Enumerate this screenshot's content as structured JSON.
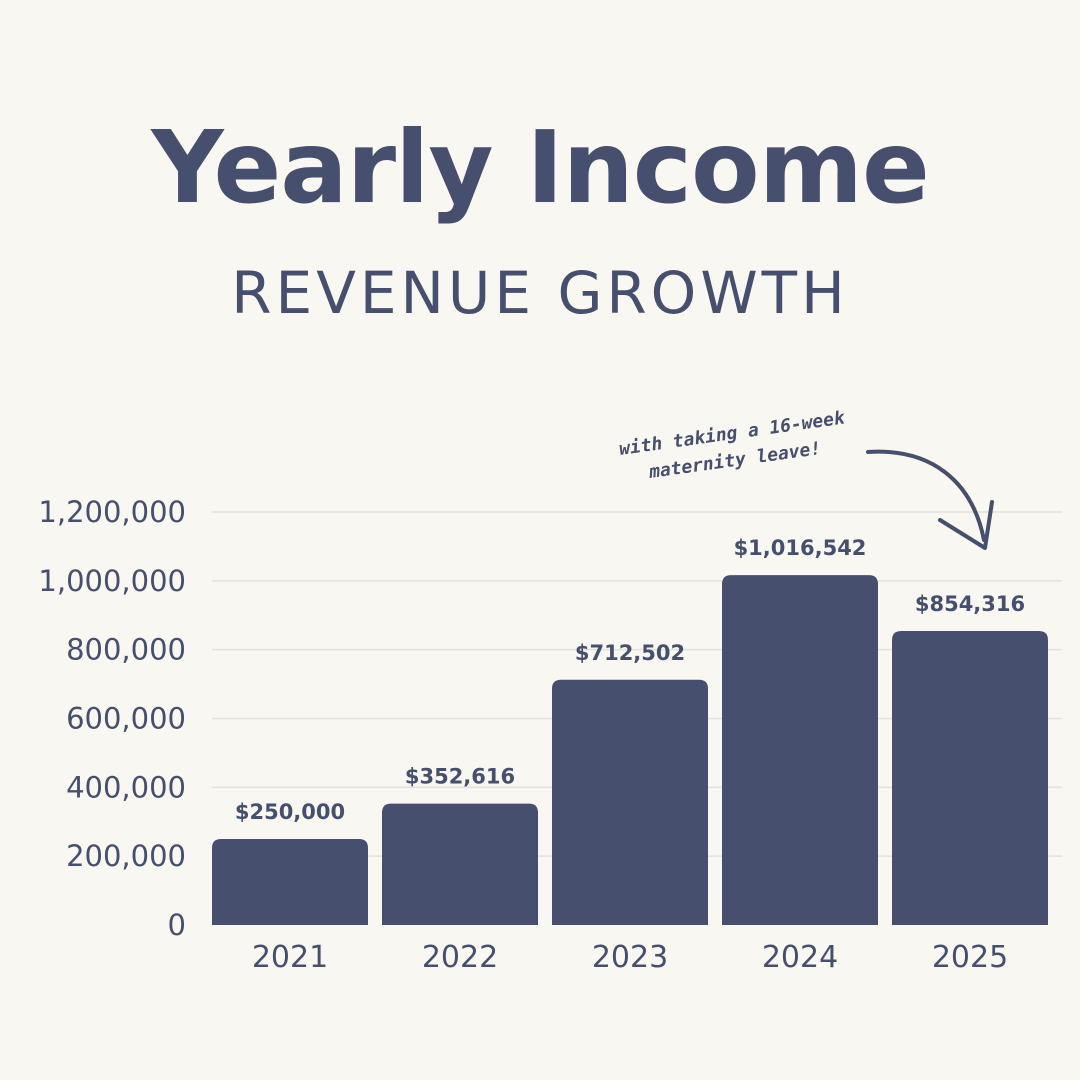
{
  "chart_data": {
    "type": "bar",
    "title": "Yearly Income",
    "subtitle": "REVENUE GROWTH",
    "categories": [
      "2021",
      "2022",
      "2023",
      "2024",
      "2025"
    ],
    "values": [
      250000,
      352616,
      712502,
      1016542,
      854316
    ],
    "value_labels": [
      "$250,000",
      "$352,616",
      "$712,502",
      "$1,016,542",
      "$854,316"
    ],
    "ylim": [
      0,
      1200000
    ],
    "y_ticks": [
      0,
      200000,
      400000,
      600000,
      800000,
      1000000,
      1200000
    ],
    "y_tick_labels": [
      "0",
      "200,000",
      "400,000",
      "600,000",
      "800,000",
      "1,000,000",
      "1,200,000"
    ],
    "grid": true,
    "annotation": {
      "lines": [
        "with taking a 16-week",
        "maternity leave!"
      ],
      "target_category": "2025"
    }
  },
  "colors": {
    "background": "#f9f7f2",
    "bar": "#464f6e",
    "text": "#464f6e",
    "grid": "#e4e2dc"
  }
}
